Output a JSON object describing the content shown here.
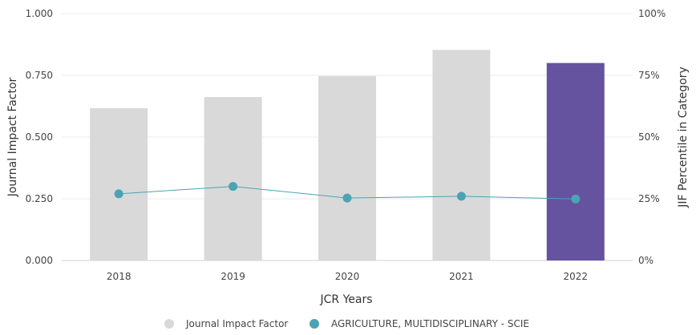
{
  "chart_data": {
    "type": "bar",
    "categories": [
      "2018",
      "2019",
      "2020",
      "2021",
      "2022"
    ],
    "series": [
      {
        "name": "Journal Impact Factor",
        "type": "bar",
        "axis": "left",
        "values": [
          0.617,
          0.662,
          0.747,
          0.853,
          0.8
        ],
        "color": "#d9d9d9",
        "highlight_color": "#6553a0",
        "highlight_index": 4
      },
      {
        "name": "AGRICULTURE, MULTIDISCIPLINARY - SCIE",
        "type": "line",
        "axis": "right",
        "values": [
          27.0,
          30.0,
          25.3,
          26.0,
          24.9
        ],
        "color": "#4ba3b4"
      }
    ],
    "xlabel": "JCR Years",
    "ylabel": "Journal Impact Factor",
    "y2label": "JIF Percentile in Category",
    "ylim": [
      0,
      1
    ],
    "y2lim": [
      0,
      100
    ],
    "yticks": [
      "0.000",
      "0.250",
      "0.500",
      "0.750",
      "1.000"
    ],
    "y2ticks": [
      "0%",
      "25%",
      "50%",
      "75%",
      "100%"
    ],
    "grid": true,
    "legend_position": "bottom"
  }
}
